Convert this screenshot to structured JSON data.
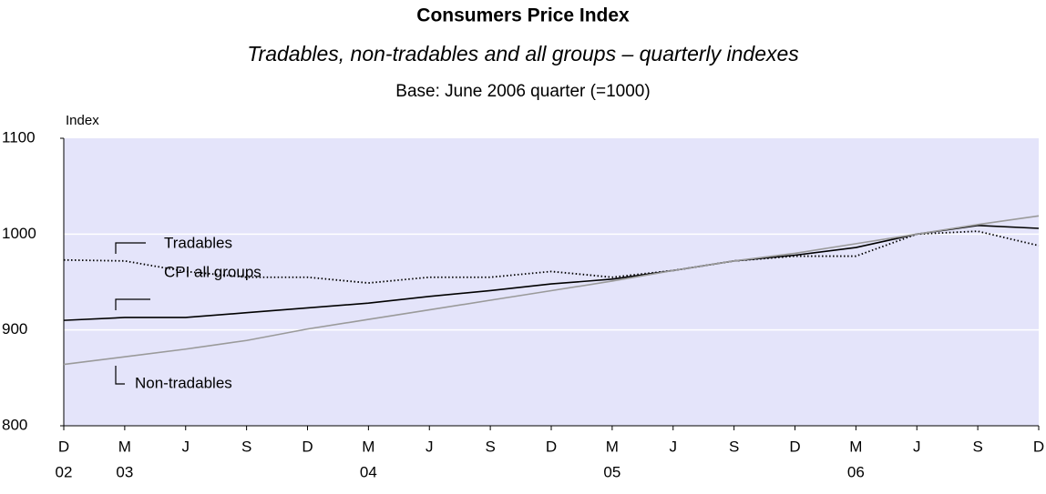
{
  "chart_data": {
    "type": "line",
    "title": "Consumers Price Index",
    "subtitle": "Tradables, non-tradables and all groups – quarterly indexes",
    "note": "Base: June 2006 quarter (=1000)",
    "y_label": "Index",
    "categories": [
      "D",
      "M",
      "J",
      "S",
      "D",
      "M",
      "J",
      "S",
      "D",
      "M",
      "J",
      "S",
      "D",
      "M",
      "J",
      "S",
      "D"
    ],
    "year_labels": [
      "02",
      "03",
      null,
      null,
      null,
      "04",
      null,
      null,
      null,
      "05",
      null,
      null,
      null,
      "06",
      null,
      null,
      null
    ],
    "series": [
      {
        "name": "Tradables",
        "color": "#000000",
        "dash": "dotted",
        "values": [
          973,
          972,
          961,
          955,
          955,
          949,
          955,
          955,
          961,
          955,
          962,
          972,
          977,
          977,
          1000,
          1003,
          988
        ]
      },
      {
        "name": "CPI all groups",
        "color": "#000000",
        "dash": "solid",
        "values": [
          910,
          913,
          913,
          918,
          923,
          928,
          935,
          941,
          948,
          953,
          962,
          972,
          978,
          986,
          1000,
          1009,
          1006
        ]
      },
      {
        "name": "Non-tradables",
        "color": "#9a9a9a",
        "dash": "solid",
        "values": [
          864,
          872,
          880,
          889,
          901,
          911,
          921,
          931,
          941,
          951,
          962,
          972,
          980,
          990,
          1000,
          1010,
          1019
        ]
      }
    ],
    "ylim": [
      800,
      1100
    ],
    "yticks": [
      800,
      900,
      1000,
      1100
    ],
    "grid": true,
    "plot_background": "#e4e4fa"
  }
}
